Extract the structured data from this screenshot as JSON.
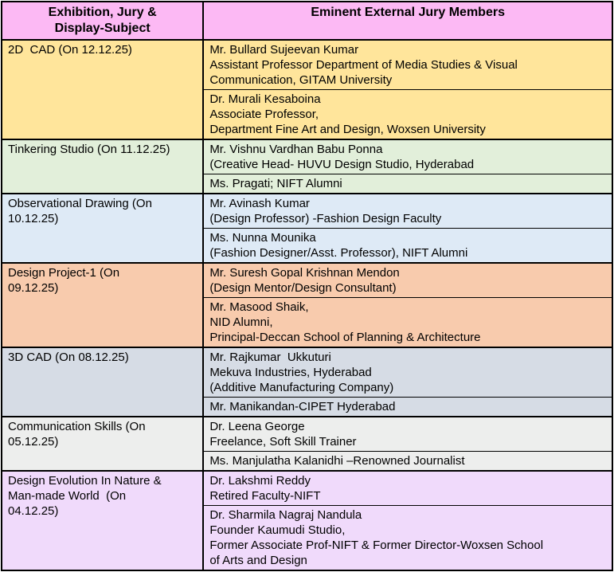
{
  "colors": {
    "border": "#000000",
    "text": "#000000",
    "header_bg": "#FCB9F4"
  },
  "table": {
    "columns": [
      {
        "name": "subject",
        "lines": [
          "Exhibition, Jury &",
          "Display-Subject"
        ]
      },
      {
        "name": "jury",
        "lines": [
          "Eminent External Jury Members"
        ]
      }
    ],
    "rows": [
      {
        "subject_lines": [
          "2D  CAD (On 12.12.25)"
        ],
        "bg": "#FFE59B",
        "jurors": [
          {
            "lines": [
              "Mr. Bullard Sujeevan Kumar",
              "Assistant Professor Department of Media Studies & Visual",
              "Communication, GITAM University"
            ]
          },
          {
            "lines": [
              "Dr. Murali Kesaboina",
              "Associate Professor,",
              "Department Fine Art and Design, Woxsen University"
            ]
          }
        ]
      },
      {
        "subject_lines": [
          "Tinkering Studio (On 11.12.25)"
        ],
        "bg": "#E2EFDA",
        "jurors": [
          {
            "lines": [
              "Mr. Vishnu Vardhan Babu Ponna",
              "(Creative Head- HUVU Design Studio, Hyderabad"
            ]
          },
          {
            "lines": [
              "Ms. Pragati; NIFT Alumni"
            ]
          }
        ]
      },
      {
        "subject_lines": [
          "Observational Drawing (On",
          "10.12.25)"
        ],
        "bg": "#DEEAF6",
        "jurors": [
          {
            "lines": [
              "Mr. Avinash Kumar",
              "(Design Professor) -Fashion Design Faculty"
            ]
          },
          {
            "lines": [
              "Ms. Nunna Mounika",
              "(Fashion Designer/Asst. Professor), NIFT Alumni"
            ]
          }
        ]
      },
      {
        "subject_lines": [
          "Design Project-1 (On",
          "09.12.25)"
        ],
        "bg": "#F8CBAD",
        "jurors": [
          {
            "lines": [
              "Mr. Suresh Gopal Krishnan Mendon",
              "(Design Mentor/Design Consultant)"
            ]
          },
          {
            "lines": [
              "Mr. Masood Shaik,",
              "NID Alumni,",
              "Principal-Deccan School of Planning & Architecture"
            ]
          }
        ]
      },
      {
        "subject_lines": [
          "3D CAD (On 08.12.25)"
        ],
        "bg": "#D6DCE5",
        "jurors": [
          {
            "lines": [
              "Mr. Rajkumar  Ukkuturi",
              "Mekuva Industries, Hyderabad",
              "(Additive Manufacturing Company)"
            ]
          },
          {
            "lines": [
              "Mr. Manikandan-CIPET Hyderabad"
            ]
          }
        ]
      },
      {
        "subject_lines": [
          "Communication Skills (On",
          "05.12.25)"
        ],
        "bg": "#EDEEED",
        "jurors": [
          {
            "lines": [
              "Dr. Leena George",
              "Freelance, Soft Skill Trainer"
            ]
          },
          {
            "lines": [
              "Ms. Manjulatha Kalanidhi –Renowned Journalist"
            ]
          }
        ]
      },
      {
        "subject_lines": [
          "Design Evolution In Nature &",
          "Man-made World  (On",
          "04.12.25)"
        ],
        "bg": "#F0DAFB",
        "jurors": [
          {
            "lines": [
              "Dr. Lakshmi Reddy",
              "Retired Faculty-NIFT"
            ]
          },
          {
            "lines": [
              "Dr. Sharmila Nagraj Nandula",
              "Founder Kaumudi Studio,",
              "Former Associate Prof-NIFT & Former Director-Woxsen School",
              "of Arts and Design"
            ]
          }
        ]
      }
    ]
  }
}
